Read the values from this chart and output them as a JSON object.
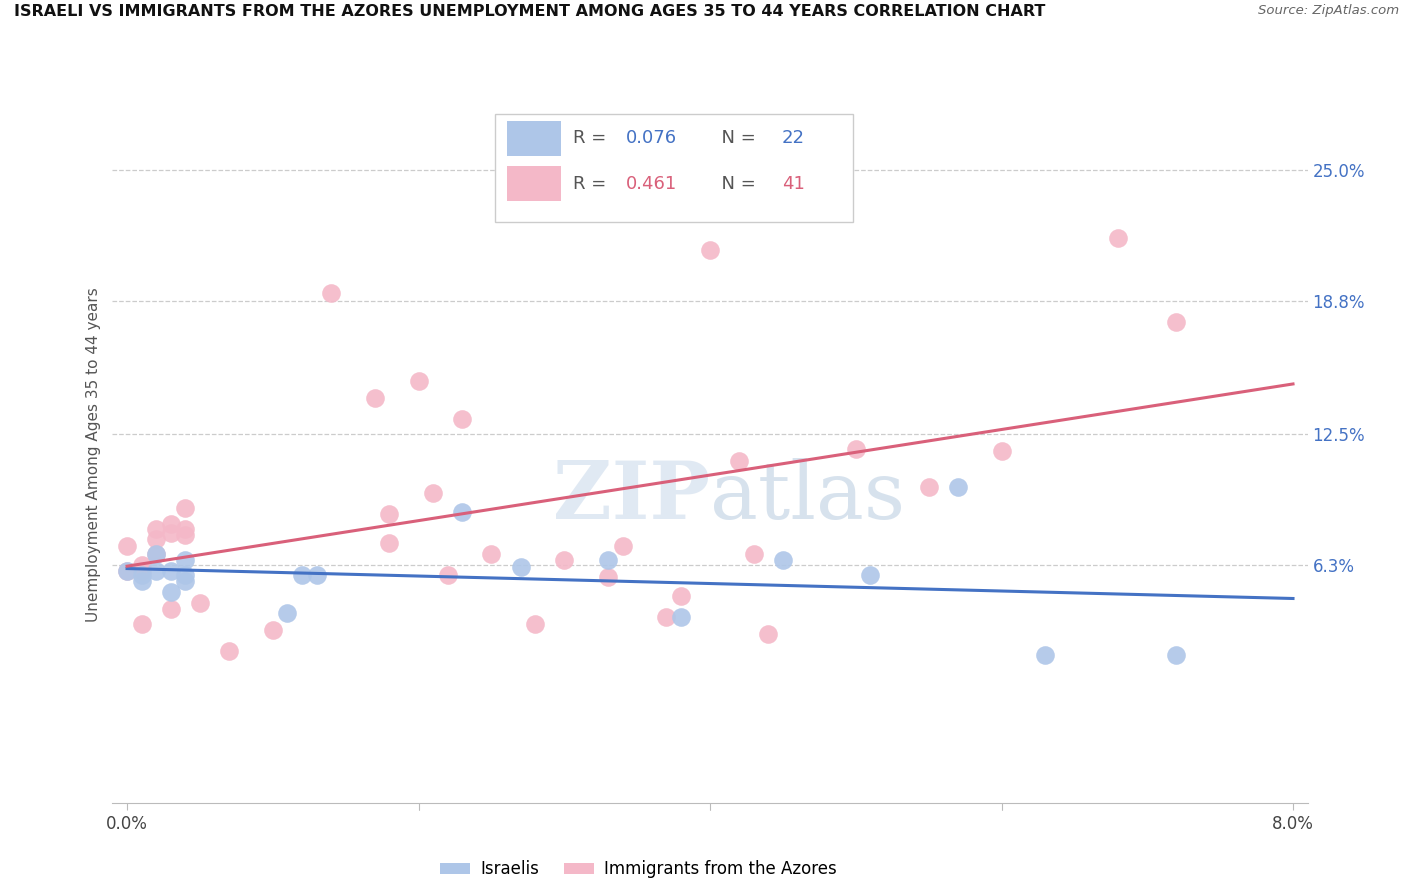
{
  "title": "ISRAELI VS IMMIGRANTS FROM THE AZORES UNEMPLOYMENT AMONG AGES 35 TO 44 YEARS CORRELATION CHART",
  "source": "Source: ZipAtlas.com",
  "ylabel": "Unemployment Among Ages 35 to 44 years",
  "y_ticks": [
    0.063,
    0.125,
    0.188,
    0.25
  ],
  "y_tick_labels": [
    "6.3%",
    "12.5%",
    "18.8%",
    "25.0%"
  ],
  "x_range": [
    0.0,
    0.08
  ],
  "y_range": [
    -0.05,
    0.28
  ],
  "israelis_R": 0.076,
  "israelis_N": 22,
  "azores_R": 0.461,
  "azores_N": 41,
  "israeli_color": "#aec6e8",
  "azores_color": "#f4b8c8",
  "israeli_line_color": "#4472c4",
  "azores_line_color": "#d9607a",
  "background_color": "#ffffff",
  "israelis_x": [
    0.0,
    0.001,
    0.001,
    0.002,
    0.002,
    0.003,
    0.003,
    0.004,
    0.004,
    0.004,
    0.011,
    0.012,
    0.013,
    0.023,
    0.027,
    0.033,
    0.038,
    0.045,
    0.051,
    0.057,
    0.063,
    0.072
  ],
  "israelis_y": [
    0.06,
    0.058,
    0.055,
    0.06,
    0.068,
    0.05,
    0.06,
    0.055,
    0.058,
    0.065,
    0.04,
    0.058,
    0.058,
    0.088,
    0.062,
    0.065,
    0.038,
    0.065,
    0.058,
    0.1,
    0.02,
    0.02
  ],
  "azores_x": [
    0.0,
    0.0,
    0.001,
    0.001,
    0.001,
    0.002,
    0.002,
    0.002,
    0.003,
    0.003,
    0.003,
    0.004,
    0.004,
    0.004,
    0.005,
    0.007,
    0.01,
    0.014,
    0.017,
    0.018,
    0.018,
    0.02,
    0.021,
    0.022,
    0.023,
    0.025,
    0.028,
    0.03,
    0.033,
    0.034,
    0.037,
    0.038,
    0.04,
    0.042,
    0.043,
    0.044,
    0.05,
    0.055,
    0.06,
    0.068,
    0.072
  ],
  "azores_y": [
    0.06,
    0.072,
    0.063,
    0.06,
    0.035,
    0.08,
    0.075,
    0.068,
    0.082,
    0.078,
    0.042,
    0.08,
    0.077,
    0.09,
    0.045,
    0.022,
    0.032,
    0.192,
    0.142,
    0.073,
    0.087,
    0.15,
    0.097,
    0.058,
    0.132,
    0.068,
    0.035,
    0.065,
    0.057,
    0.072,
    0.038,
    0.048,
    0.212,
    0.112,
    0.068,
    0.03,
    0.118,
    0.1,
    0.117,
    0.218,
    0.178
  ]
}
